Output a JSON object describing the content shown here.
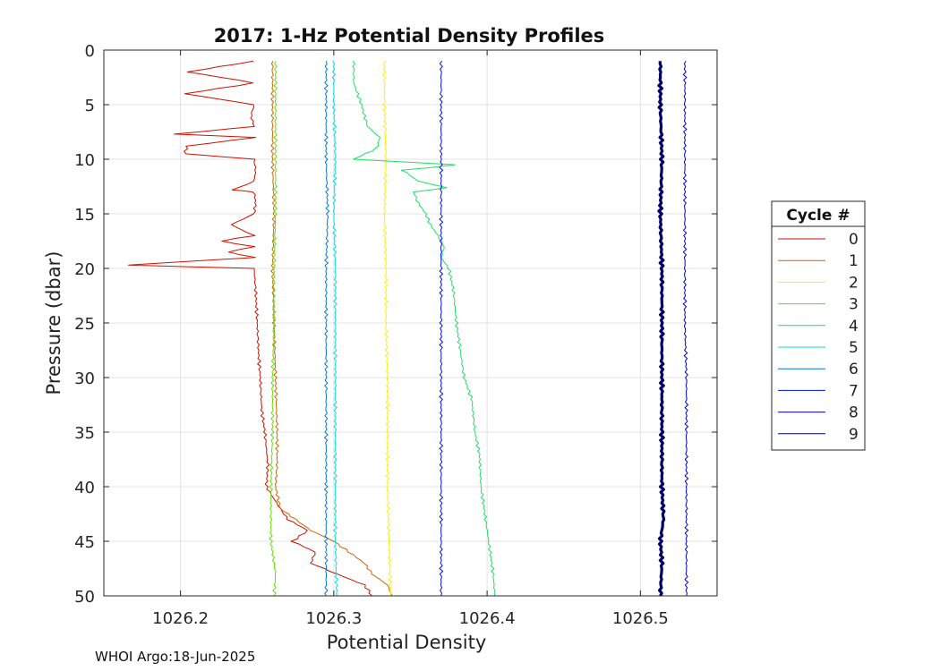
{
  "footer": "WHOI Argo:18-Jun-2025",
  "chart_data": {
    "type": "line",
    "title": "2017: 1-Hz Potential Density Profiles",
    "xlabel": "Potential Density",
    "ylabel": "Pressure (dbar)",
    "xlim": [
      1026.15,
      1026.55
    ],
    "ylim": [
      0,
      50
    ],
    "y_reversed": true,
    "grid": true,
    "xticks": [
      1026.2,
      1026.3,
      1026.4,
      1026.5
    ],
    "xtick_labels": [
      "1026.2",
      "1026.3",
      "1026.4",
      "1026.5"
    ],
    "yticks": [
      0,
      5,
      10,
      15,
      20,
      25,
      30,
      35,
      40,
      45,
      50
    ],
    "ytick_labels": [
      "0",
      "5",
      "10",
      "15",
      "20",
      "25",
      "30",
      "35",
      "40",
      "45",
      "50"
    ],
    "legend": {
      "title": "Cycle #",
      "placement": "outside-right"
    },
    "series": [
      {
        "name": "0",
        "color": "#cc1100",
        "pressure": [
          1,
          2,
          3,
          4,
          5,
          6,
          7,
          7.7,
          8,
          8.8,
          9.5,
          10,
          11,
          12,
          12.8,
          13,
          14,
          15,
          16,
          17,
          17.5,
          18,
          18.5,
          19,
          19.7,
          20,
          22,
          25,
          28,
          30,
          33,
          35,
          38,
          40,
          42,
          43,
          44,
          45,
          46,
          47,
          48,
          49,
          50
        ],
        "density": [
          1026.248,
          1026.205,
          1026.248,
          1026.203,
          1026.248,
          1026.246,
          1026.248,
          1026.196,
          1026.248,
          1026.204,
          1026.203,
          1026.248,
          1026.249,
          1026.248,
          1026.234,
          1026.248,
          1026.249,
          1026.248,
          1026.233,
          1026.248,
          1026.226,
          1026.248,
          1026.231,
          1026.248,
          1026.165,
          1026.248,
          1026.249,
          1026.25,
          1026.251,
          1026.252,
          1026.253,
          1026.255,
          1026.257,
          1026.256,
          1026.265,
          1026.27,
          1026.283,
          1026.273,
          1026.288,
          1026.285,
          1026.302,
          1026.32,
          1026.325
        ]
      },
      {
        "name": "1",
        "color": "#cc6600",
        "pressure": [
          1,
          5,
          10,
          15,
          20,
          25,
          30,
          35,
          38,
          40,
          42,
          43,
          44,
          45,
          46,
          47,
          48,
          49,
          50
        ],
        "density": [
          1026.26,
          1026.26,
          1026.26,
          1026.261,
          1026.26,
          1026.261,
          1026.262,
          1026.263,
          1026.263,
          1026.262,
          1026.265,
          1026.275,
          1026.285,
          1026.3,
          1026.31,
          1026.32,
          1026.325,
          1026.335,
          1026.338
        ]
      },
      {
        "name": "2",
        "color": "#ffee00",
        "pressure": [
          1,
          5,
          10,
          15,
          20,
          25,
          30,
          35,
          40,
          45,
          50
        ],
        "density": [
          1026.333,
          1026.333,
          1026.334,
          1026.333,
          1026.334,
          1026.334,
          1026.335,
          1026.335,
          1026.335,
          1026.336,
          1026.337
        ]
      },
      {
        "name": "3",
        "color": "#66dd00",
        "pressure": [
          1,
          5,
          10,
          15,
          20,
          25,
          30,
          35,
          40,
          45,
          48,
          50
        ],
        "density": [
          1026.262,
          1026.262,
          1026.262,
          1026.262,
          1026.261,
          1026.261,
          1026.26,
          1026.26,
          1026.259,
          1026.259,
          1026.262,
          1026.261
        ]
      },
      {
        "name": "4",
        "color": "#22dd66",
        "pressure": [
          1,
          3,
          5,
          7,
          8,
          9,
          10,
          10.5,
          11,
          12,
          12.6,
          13,
          14,
          15,
          16,
          17,
          18,
          19,
          20,
          22,
          25,
          28,
          30,
          32,
          35,
          37,
          40,
          42,
          44,
          46,
          48,
          50
        ],
        "density": [
          1026.313,
          1026.313,
          1026.318,
          1026.322,
          1026.33,
          1026.328,
          1026.313,
          1026.38,
          1026.345,
          1026.355,
          1026.373,
          1026.352,
          1026.355,
          1026.36,
          1026.363,
          1026.368,
          1026.372,
          1026.37,
          1026.375,
          1026.378,
          1026.38,
          1026.383,
          1026.385,
          1026.39,
          1026.392,
          1026.395,
          1026.396,
          1026.398,
          1026.4,
          1026.402,
          1026.404,
          1026.405
        ]
      },
      {
        "name": "5",
        "color": "#00dddd",
        "pressure": [
          1,
          5,
          10,
          15,
          20,
          25,
          30,
          35,
          40,
          45,
          50
        ],
        "density": [
          1026.3,
          1026.3,
          1026.301,
          1026.3,
          1026.301,
          1026.301,
          1026.301,
          1026.301,
          1026.301,
          1026.301,
          1026.302
        ]
      },
      {
        "name": "6",
        "color": "#0077dd",
        "pressure": [
          1,
          5,
          10,
          15,
          20,
          25,
          30,
          35,
          40,
          45,
          50
        ],
        "density": [
          1026.295,
          1026.295,
          1026.295,
          1026.296,
          1026.295,
          1026.295,
          1026.295,
          1026.295,
          1026.295,
          1026.295,
          1026.295
        ]
      },
      {
        "name": "7",
        "color": "#0011dd",
        "pressure": [
          1,
          5,
          10,
          15,
          20,
          25,
          30,
          35,
          40,
          45,
          50
        ],
        "density": [
          1026.37,
          1026.37,
          1026.37,
          1026.37,
          1026.37,
          1026.37,
          1026.37,
          1026.37,
          1026.37,
          1026.37,
          1026.37
        ]
      },
      {
        "name": "8",
        "color": "#0000bb",
        "pressure": [
          1,
          5,
          10,
          15,
          20,
          25,
          30,
          35,
          40,
          45,
          50
        ],
        "density": [
          1026.529,
          1026.529,
          1026.529,
          1026.529,
          1026.529,
          1026.529,
          1026.53,
          1026.53,
          1026.53,
          1026.53,
          1026.53
        ]
      },
      {
        "name": "9",
        "color": "#000066",
        "pressure": [
          1,
          5,
          10,
          15,
          20,
          25,
          30,
          35,
          40,
          43,
          45,
          47,
          50
        ],
        "density": [
          1026.513,
          1026.513,
          1026.514,
          1026.513,
          1026.514,
          1026.514,
          1026.514,
          1026.514,
          1026.514,
          1026.515,
          1026.513,
          1026.514,
          1026.513
        ]
      }
    ]
  }
}
